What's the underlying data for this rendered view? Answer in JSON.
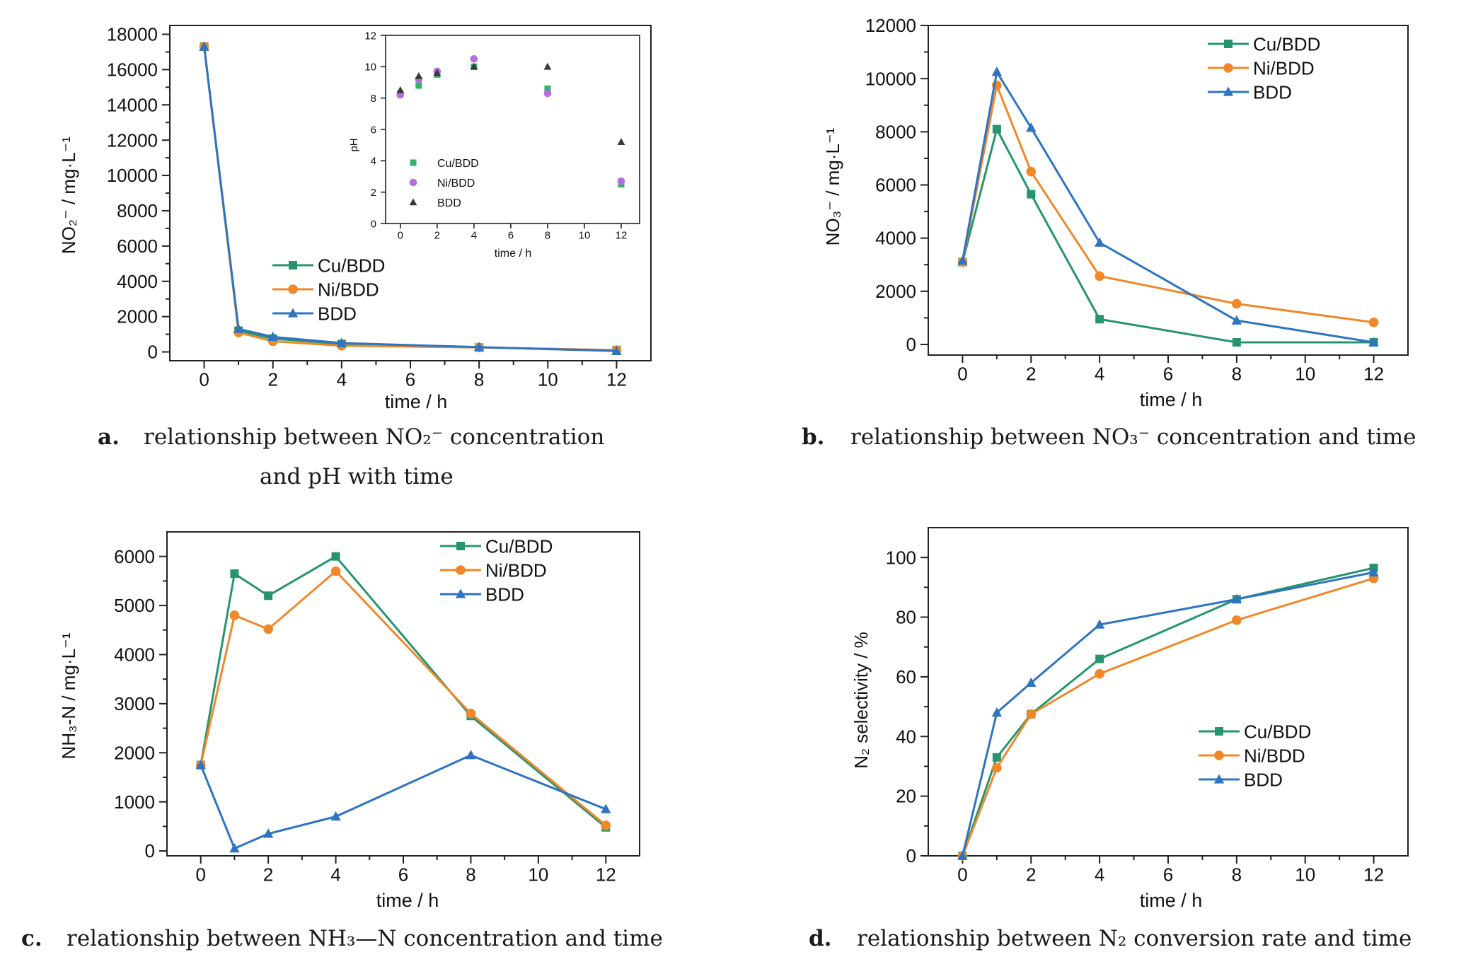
{
  "colors": {
    "cu": "#26956f",
    "ni": "#f0882a",
    "bdd": "#2f74c0",
    "cu_inset": "#2db56a",
    "ni_inset": "#b36ee0",
    "bdd_inset": "#3a3a3a"
  },
  "chart_data": [
    {
      "id": "a",
      "type": "line",
      "xlabel": "time / h",
      "ylabel": "NO₂⁻ / mg·L⁻¹",
      "xlim": [
        -1,
        13
      ],
      "ylim": [
        -500,
        18500
      ],
      "xticks": [
        0,
        2,
        4,
        6,
        8,
        10,
        12
      ],
      "yticks": [
        0,
        2000,
        4000,
        6000,
        8000,
        10000,
        12000,
        14000,
        16000,
        18000
      ],
      "x": [
        0,
        1,
        2,
        4,
        8,
        12
      ],
      "legend_position": "center-left",
      "series": [
        {
          "name": "Cu/BDD",
          "marker": "square",
          "values": [
            17300,
            1200,
            750,
            450,
            250,
            100
          ]
        },
        {
          "name": "Ni/BDD",
          "marker": "circle",
          "values": [
            17300,
            1100,
            600,
            350,
            250,
            100
          ]
        },
        {
          "name": "BDD",
          "marker": "triangle",
          "values": [
            17300,
            1300,
            850,
            500,
            270,
            50
          ]
        }
      ],
      "caption_letter": "a.",
      "caption_line1": "relationship between NO₂⁻ concentration",
      "caption_line2": "and pH with time",
      "inset": {
        "type": "scatter",
        "xlabel": "time / h",
        "ylabel": "pH",
        "xlim": [
          -0.8,
          13
        ],
        "ylim": [
          0,
          12
        ],
        "xticks": [
          0,
          2,
          4,
          6,
          8,
          10,
          12
        ],
        "yticks": [
          0,
          2,
          4,
          6,
          8,
          10,
          12
        ],
        "x": [
          0,
          1,
          2,
          4,
          8,
          12
        ],
        "legend_position": "bottom-left",
        "series": [
          {
            "name": "Cu/BDD",
            "marker": "square",
            "values": [
              8.3,
              8.8,
              9.5,
              10.0,
              8.6,
              2.5
            ]
          },
          {
            "name": "Ni/BDD",
            "marker": "circle",
            "values": [
              8.2,
              9.2,
              9.7,
              10.5,
              8.3,
              2.7
            ]
          },
          {
            "name": "BDD",
            "marker": "triangle",
            "values": [
              8.5,
              9.4,
              9.6,
              10.0,
              10.0,
              5.2
            ]
          }
        ]
      }
    },
    {
      "id": "b",
      "type": "line",
      "xlabel": "time / h",
      "ylabel": "NO₃⁻ / mg·L⁻¹",
      "xlim": [
        -1,
        13
      ],
      "ylim": [
        -400,
        12000
      ],
      "xticks": [
        0,
        2,
        4,
        6,
        8,
        10,
        12
      ],
      "yticks": [
        0,
        2000,
        4000,
        6000,
        8000,
        10000,
        12000
      ],
      "x": [
        0,
        1,
        2,
        4,
        8,
        12
      ],
      "legend_position": "top-right",
      "series": [
        {
          "name": "Cu/BDD",
          "marker": "square",
          "values": [
            3100,
            8100,
            5650,
            950,
            80,
            80
          ]
        },
        {
          "name": "Ni/BDD",
          "marker": "circle",
          "values": [
            3100,
            9750,
            6500,
            2570,
            1530,
            830
          ]
        },
        {
          "name": "BDD",
          "marker": "triangle",
          "values": [
            3150,
            10250,
            8150,
            3830,
            900,
            80
          ]
        }
      ],
      "caption_letter": "b.",
      "caption_line1": "relationship between NO₃⁻ concentration and time",
      "caption_line2": ""
    },
    {
      "id": "c",
      "type": "line",
      "xlabel": "time / h",
      "ylabel": "NH₃-N / mg·L⁻¹",
      "xlim": [
        -1,
        13
      ],
      "ylim": [
        -100,
        6500
      ],
      "xticks": [
        0,
        2,
        4,
        6,
        8,
        10,
        12
      ],
      "yticks": [
        0,
        1000,
        2000,
        3000,
        4000,
        5000,
        6000
      ],
      "x": [
        0,
        1,
        2,
        4,
        8,
        12
      ],
      "legend_position": "top-right",
      "series": [
        {
          "name": "Cu/BDD",
          "marker": "square",
          "values": [
            1750,
            5650,
            5200,
            6000,
            2750,
            480
          ]
        },
        {
          "name": "Ni/BDD",
          "marker": "circle",
          "values": [
            1750,
            4800,
            4520,
            5700,
            2800,
            520
          ]
        },
        {
          "name": "BDD",
          "marker": "triangle",
          "values": [
            1750,
            50,
            350,
            700,
            1950,
            850
          ]
        }
      ],
      "caption_letter": "c.",
      "caption_line1": "relationship between NH₃—N concentration and time",
      "caption_line2": ""
    },
    {
      "id": "d",
      "type": "line",
      "xlabel": "time / h",
      "ylabel": "N₂ selectivity / %",
      "xlim": [
        -1,
        13
      ],
      "ylim": [
        0,
        110
      ],
      "xticks": [
        0,
        2,
        4,
        6,
        8,
        10,
        12
      ],
      "yticks": [
        0,
        20,
        40,
        60,
        80,
        100
      ],
      "x": [
        0,
        1,
        2,
        4,
        8,
        12
      ],
      "legend_position": "bottom-right",
      "series": [
        {
          "name": "Cu/BDD",
          "marker": "square",
          "values": [
            0,
            33,
            47.5,
            66,
            86,
            96.5
          ]
        },
        {
          "name": "Ni/BDD",
          "marker": "circle",
          "values": [
            0,
            29.5,
            47.5,
            61,
            79,
            93
          ]
        },
        {
          "name": "BDD",
          "marker": "triangle",
          "values": [
            0,
            48,
            58,
            77.5,
            86,
            95
          ]
        }
      ],
      "caption_letter": "d.",
      "caption_line1": "relationship between N₂ conversion rate and time",
      "caption_line2": ""
    }
  ]
}
